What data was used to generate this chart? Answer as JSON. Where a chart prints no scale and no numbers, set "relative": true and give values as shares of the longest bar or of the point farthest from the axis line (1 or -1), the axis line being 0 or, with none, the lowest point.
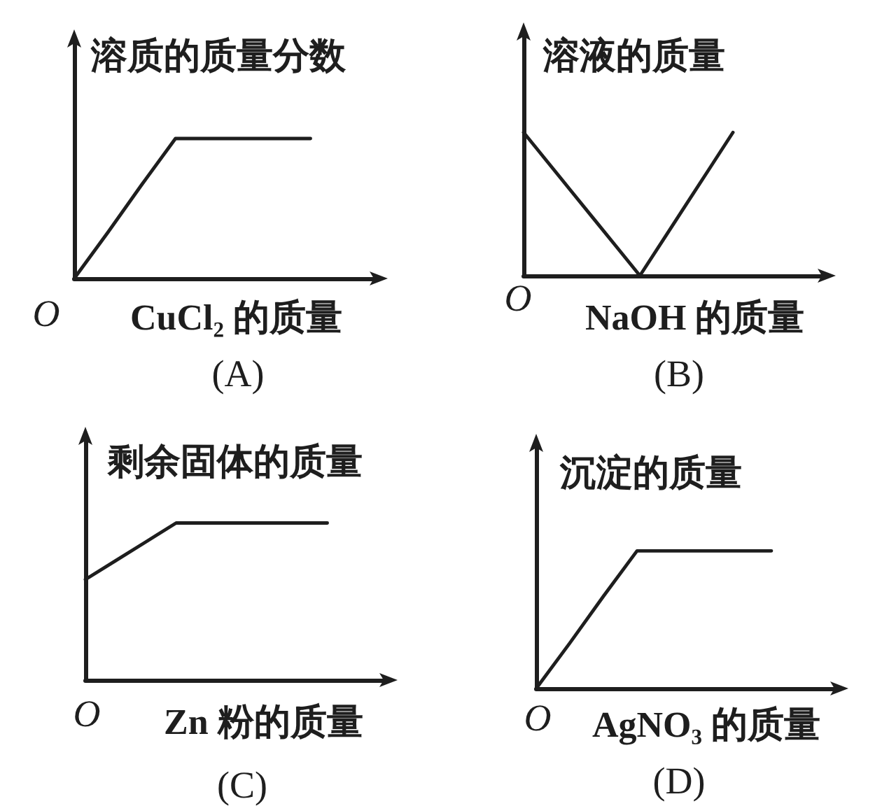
{
  "chart_data": [
    {
      "type": "line",
      "title": "(A)",
      "xlabel": "CuCl₂ 的质量",
      "ylabel": "溶质的质量分数",
      "relative": true,
      "color": "#1e1e1e",
      "categories": [
        null,
        null,
        null,
        null,
        null,
        null,
        null,
        null,
        null,
        null
      ],
      "values": [
        0,
        0.33,
        0.67,
        1,
        1,
        1,
        1,
        1,
        null,
        null
      ],
      "annotations": [
        "O"
      ]
    },
    {
      "type": "line",
      "title": "(B)",
      "xlabel": "NaOH 的质量",
      "ylabel": "溶液的质量",
      "relative": true,
      "color": "#1e1e1e",
      "categories": [
        null,
        null,
        null,
        null,
        null,
        null,
        null,
        null,
        null,
        null,
        null,
        null,
        null,
        null
      ],
      "values": [
        1,
        0.8,
        0.6,
        0.4,
        0.2,
        0,
        0.25,
        0.5,
        0.75,
        1,
        null,
        null,
        null,
        null
      ],
      "annotations": [
        "O"
      ]
    },
    {
      "type": "line",
      "title": "(C)",
      "xlabel": "Zn 粉的质量",
      "ylabel": "剩余固体的质量",
      "relative": true,
      "color": "#1e1e1e",
      "categories": [
        null,
        null,
        null,
        null,
        null,
        null,
        null,
        null,
        null,
        null,
        null
      ],
      "values": [
        0.64,
        0.76,
        0.88,
        1,
        1,
        1,
        1,
        1,
        1,
        null,
        null
      ],
      "annotations": [
        "O"
      ]
    },
    {
      "type": "line",
      "title": "(D)",
      "xlabel": "AgNO₃ 的质量",
      "ylabel": "沉淀的质量",
      "relative": true,
      "color": "#1e1e1e",
      "categories": [
        null,
        null,
        null,
        null,
        null,
        null,
        null,
        null,
        null,
        null
      ],
      "values": [
        0,
        0.33,
        0.67,
        1,
        1,
        1,
        1,
        1,
        null,
        null
      ],
      "annotations": [
        "O"
      ]
    }
  ]
}
